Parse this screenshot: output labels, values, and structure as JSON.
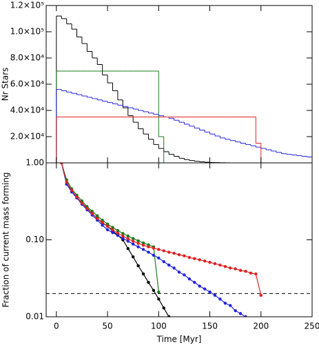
{
  "chart_data": [
    {
      "type": "histogram",
      "ylabel": "Nr Stars",
      "bins": [
        0,
        5,
        10,
        15,
        20,
        25,
        30,
        35,
        40,
        45,
        50,
        55,
        60,
        65,
        70,
        75,
        80,
        85,
        90,
        95,
        100,
        105,
        110,
        115,
        120,
        125,
        130,
        135,
        140,
        145,
        150,
        155,
        160,
        165,
        170,
        175,
        180,
        185,
        190,
        195,
        200,
        205,
        210,
        215,
        220,
        225,
        230,
        235,
        240,
        245,
        250
      ],
      "xlim": [
        -10,
        250
      ],
      "xticks": [
        0,
        50,
        100,
        150,
        200,
        250
      ],
      "ylim": [
        0,
        120000
      ],
      "yticks": [
        {
          "value": 20000,
          "label": "2.0×10⁴"
        },
        {
          "value": 40000,
          "label": "4.0×10⁴"
        },
        {
          "value": 60000,
          "label": "6.0×10⁴"
        },
        {
          "value": 80000,
          "label": "8.0×10⁴"
        },
        {
          "value": 100000,
          "label": "1.0×10⁵"
        },
        {
          "value": 120000,
          "label": "1.2×10⁵"
        }
      ],
      "series": [
        {
          "color": "#000000",
          "values": [
            112000,
            110000,
            106000,
            102000,
            96000,
            91000,
            85000,
            80000,
            75000,
            67000,
            61000,
            55000,
            48000,
            42000,
            36000,
            31000,
            26000,
            22000,
            18000,
            14000,
            11000,
            8500,
            6500,
            5000,
            3500,
            2500,
            1800,
            1200,
            800,
            500,
            300,
            200,
            100,
            50,
            0,
            0,
            0,
            0,
            0,
            0,
            0,
            0,
            0,
            0,
            0,
            0,
            0,
            0,
            0,
            0
          ]
        },
        {
          "color": "#1a7a1a",
          "values": [
            70000,
            70000,
            70000,
            70000,
            70000,
            70000,
            70000,
            70000,
            70000,
            70000,
            70000,
            70000,
            70000,
            70000,
            70000,
            70000,
            70000,
            70000,
            70000,
            70000,
            20000,
            0,
            0,
            0,
            0,
            0,
            0,
            0,
            0,
            0,
            0,
            0,
            0,
            0,
            0,
            0,
            0,
            0,
            0,
            0,
            0,
            0,
            0,
            0,
            0,
            0,
            0,
            0,
            0,
            0
          ]
        },
        {
          "color": "#2323e0",
          "values": [
            56000,
            55000,
            54000,
            53000,
            52000,
            51000,
            50000,
            49000,
            48000,
            47000,
            46000,
            45000,
            44000,
            43000,
            42000,
            41000,
            40000,
            39000,
            38000,
            37000,
            36000,
            35000,
            34000,
            32500,
            31000,
            29500,
            28000,
            26500,
            25000,
            23500,
            22000,
            20500,
            19000,
            18000,
            17000,
            16000,
            15000,
            14000,
            13000,
            12000,
            11000,
            10000,
            9000,
            8000,
            7000,
            6500,
            6000,
            5500,
            5000,
            4500
          ]
        },
        {
          "color": "#e02020",
          "values": [
            35000,
            35000,
            35000,
            35000,
            35000,
            35000,
            35000,
            35000,
            35000,
            35000,
            35000,
            35000,
            35000,
            35000,
            35000,
            35000,
            35000,
            35000,
            35000,
            35000,
            35000,
            35000,
            35000,
            35000,
            35000,
            35000,
            35000,
            35000,
            35000,
            35000,
            35000,
            35000,
            35000,
            35000,
            35000,
            35000,
            35000,
            35000,
            35000,
            15000,
            0,
            0,
            0,
            0,
            0,
            0,
            0,
            0,
            0,
            0
          ]
        }
      ]
    },
    {
      "type": "line",
      "xlabel": "Time [Myr]",
      "ylabel": "Fraction of current mass forming",
      "log_scale": true,
      "x": [
        5,
        10,
        15,
        20,
        25,
        30,
        35,
        40,
        45,
        50,
        55,
        60,
        65,
        70,
        75,
        80,
        85,
        90,
        95,
        100,
        105,
        110,
        115,
        120,
        125,
        130,
        135,
        140,
        145,
        150,
        155,
        160,
        165,
        170,
        175,
        180,
        185,
        190,
        195,
        200
      ],
      "xlim": [
        -10,
        250
      ],
      "xticks": [
        0,
        50,
        100,
        150,
        200,
        250
      ],
      "ylim": [
        0.01,
        1
      ],
      "yticks": [
        {
          "value": 0.01,
          "label": "0.01"
        },
        {
          "value": 0.1,
          "label": "0.10"
        },
        {
          "value": 1,
          "label": "1.00"
        }
      ],
      "hline": 0.02,
      "series": [
        {
          "color": "#000000",
          "values": [
            1,
            0.53,
            0.42,
            0.35,
            0.3,
            0.26,
            0.22,
            0.19,
            0.165,
            0.15,
            0.13,
            0.115,
            0.1,
            0.077,
            0.06,
            0.046,
            0.036,
            0.028,
            0.022,
            0.017,
            0.013,
            0.01,
            null,
            null,
            null,
            null,
            null,
            null,
            null,
            null,
            null,
            null,
            null,
            null,
            null,
            null,
            null,
            null,
            null,
            null
          ]
        },
        {
          "color": "#1a7a1a",
          "values": [
            1,
            0.6,
            0.46,
            0.38,
            0.32,
            0.27,
            0.235,
            0.205,
            0.18,
            0.16,
            0.145,
            0.132,
            0.121,
            0.112,
            0.104,
            0.097,
            0.091,
            0.086,
            0.081,
            0.021,
            null,
            null,
            null,
            null,
            null,
            null,
            null,
            null,
            null,
            null,
            null,
            null,
            null,
            null,
            null,
            null,
            null,
            null,
            null,
            null
          ]
        },
        {
          "color": "#2323e0",
          "values": [
            1,
            0.53,
            0.42,
            0.35,
            0.29,
            0.245,
            0.21,
            0.18,
            0.155,
            0.135,
            0.124,
            0.114,
            0.105,
            0.096,
            0.088,
            0.081,
            0.075,
            0.069,
            0.063,
            0.058,
            0.052,
            0.047,
            0.043,
            0.038,
            0.035,
            0.031,
            0.028,
            0.025,
            0.023,
            0.021,
            0.019,
            0.017,
            0.015,
            0.014,
            0.012,
            0.011,
            0.01,
            null,
            null,
            null
          ]
        },
        {
          "color": "#e02020",
          "values": [
            1,
            0.56,
            0.44,
            0.36,
            0.3,
            0.255,
            0.22,
            0.19,
            0.168,
            0.15,
            0.135,
            0.122,
            0.112,
            0.103,
            0.096,
            0.09,
            0.085,
            0.081,
            0.078,
            0.075,
            0.072,
            0.069,
            0.067,
            0.064,
            0.062,
            0.059,
            0.057,
            0.055,
            0.053,
            0.051,
            0.049,
            0.047,
            0.045,
            0.043,
            0.042,
            0.04,
            0.039,
            0.037,
            0.036,
            0.019
          ]
        }
      ]
    }
  ]
}
